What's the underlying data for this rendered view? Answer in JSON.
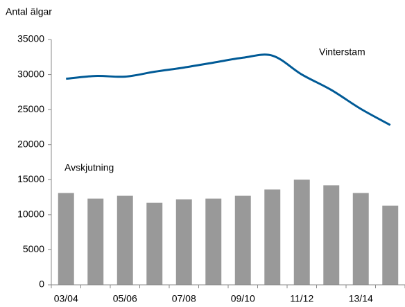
{
  "chart_data": {
    "type": "bar_line",
    "ylabel": "Antal älgar",
    "categories": [
      "03/04",
      null,
      "05/06",
      null,
      "07/08",
      null,
      "09/10",
      null,
      "11/12",
      null,
      "13/14",
      null
    ],
    "series": [
      {
        "name": "Avskjutning",
        "type": "bar",
        "color": "#999999",
        "values": [
          13100,
          12300,
          12700,
          11700,
          12200,
          12300,
          12700,
          13600,
          15000,
          14200,
          13100,
          11300
        ]
      },
      {
        "name": "Vinterstam",
        "type": "line",
        "color": "#005a96",
        "values": [
          29400,
          29800,
          29700,
          30400,
          31000,
          31700,
          32400,
          32700,
          30000,
          27800,
          25100,
          22800
        ]
      }
    ],
    "ylim": [
      0,
      35000
    ],
    "yticks": [
      0,
      5000,
      10000,
      15000,
      20000,
      25000,
      30000,
      35000
    ],
    "grid": false
  }
}
